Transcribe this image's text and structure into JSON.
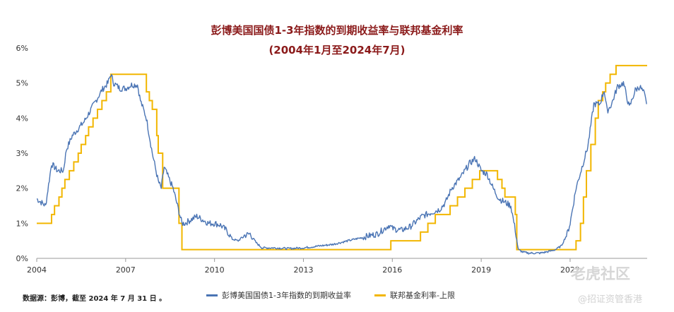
{
  "chart_data": {
    "type": "line",
    "title": "彭博美国国债1-3年指数的到期收益率与联邦基金利率",
    "subtitle": "(2004年1月至2024年7月)",
    "ylabel": "",
    "xlabel": "",
    "y_ticks": [
      "0%",
      "1%",
      "2%",
      "3%",
      "4%",
      "5%",
      "6%"
    ],
    "x_ticks": [
      "2004",
      "2007",
      "2010",
      "2013",
      "2016",
      "2019",
      "2022"
    ],
    "xlim": [
      2004.0,
      2024.6
    ],
    "ylim": [
      0,
      6
    ],
    "grid": false,
    "legend_position": "bottom",
    "colors": {
      "series1": "#4a74b4",
      "series2": "#f2b600"
    },
    "series": [
      {
        "name": "彭博美国国债1-3年指数的到期收益率",
        "x": [
          2004.0,
          2004.15,
          2004.3,
          2004.4,
          2004.5,
          2004.7,
          2004.9,
          2005.0,
          2005.2,
          2005.4,
          2005.6,
          2005.8,
          2006.0,
          2006.2,
          2006.4,
          2006.5,
          2006.6,
          2006.8,
          2007.0,
          2007.2,
          2007.4,
          2007.5,
          2007.7,
          2007.9,
          2008.0,
          2008.1,
          2008.2,
          2008.3,
          2008.45,
          2008.6,
          2008.75,
          2008.9,
          2009.0,
          2009.2,
          2009.4,
          2009.6,
          2009.8,
          2010.0,
          2010.2,
          2010.4,
          2010.6,
          2010.8,
          2011.0,
          2011.2,
          2011.4,
          2011.6,
          2011.8,
          2012.0,
          2012.5,
          2013.0,
          2013.5,
          2014.0,
          2014.5,
          2015.0,
          2015.5,
          2015.9,
          2016.0,
          2016.3,
          2016.6,
          2017.0,
          2017.3,
          2017.6,
          2017.8,
          2018.0,
          2018.3,
          2018.6,
          2018.8,
          2019.0,
          2019.2,
          2019.4,
          2019.6,
          2019.8,
          2020.0,
          2020.15,
          2020.25,
          2020.4,
          2020.6,
          2020.8,
          2021.0,
          2021.3,
          2021.5,
          2021.7,
          2021.9,
          2022.0,
          2022.2,
          2022.4,
          2022.6,
          2022.8,
          2023.0,
          2023.15,
          2023.25,
          2023.4,
          2023.6,
          2023.8,
          2024.0,
          2024.2,
          2024.35,
          2024.5,
          2024.58
        ],
        "values": [
          1.7,
          1.6,
          1.5,
          2.1,
          2.7,
          2.5,
          2.5,
          3.1,
          3.5,
          3.7,
          3.9,
          4.2,
          4.5,
          4.8,
          5.0,
          5.25,
          5.0,
          4.85,
          4.85,
          4.95,
          4.95,
          4.5,
          4.0,
          3.0,
          2.6,
          2.2,
          2.0,
          2.6,
          2.3,
          2.0,
          1.5,
          1.0,
          1.0,
          1.1,
          1.2,
          1.1,
          1.0,
          1.0,
          0.95,
          0.8,
          0.55,
          0.5,
          0.65,
          0.7,
          0.45,
          0.3,
          0.3,
          0.3,
          0.28,
          0.3,
          0.35,
          0.4,
          0.5,
          0.6,
          0.7,
          0.95,
          0.85,
          0.8,
          0.9,
          1.2,
          1.3,
          1.4,
          1.6,
          2.0,
          2.3,
          2.7,
          2.85,
          2.5,
          2.4,
          2.0,
          1.7,
          1.6,
          1.5,
          0.8,
          0.25,
          0.18,
          0.15,
          0.15,
          0.15,
          0.2,
          0.25,
          0.35,
          0.7,
          1.0,
          2.0,
          2.6,
          3.2,
          4.4,
          4.4,
          4.8,
          4.2,
          4.4,
          4.9,
          5.0,
          4.3,
          4.8,
          4.9,
          4.7,
          4.4
        ]
      },
      {
        "name": "联邦基金利率-上限",
        "x": [
          2004.0,
          2004.5,
          2004.6,
          2004.75,
          2004.85,
          2004.95,
          2005.1,
          2005.25,
          2005.4,
          2005.5,
          2005.65,
          2005.75,
          2005.9,
          2006.05,
          2006.2,
          2006.35,
          2006.5,
          2007.7,
          2007.8,
          2007.9,
          2008.05,
          2008.1,
          2008.25,
          2008.8,
          2008.9,
          2015.95,
          2016.95,
          2017.2,
          2017.45,
          2017.95,
          2018.2,
          2018.45,
          2018.7,
          2018.95,
          2019.55,
          2019.7,
          2019.8,
          2020.15,
          2020.2,
          2022.2,
          2022.35,
          2022.45,
          2022.55,
          2022.7,
          2022.85,
          2022.95,
          2023.1,
          2023.2,
          2023.35,
          2023.55,
          2024.6
        ],
        "values": [
          1.0,
          1.25,
          1.5,
          1.75,
          2.0,
          2.25,
          2.5,
          2.75,
          3.0,
          3.25,
          3.5,
          3.75,
          4.0,
          4.25,
          4.5,
          4.75,
          5.25,
          4.75,
          4.5,
          4.25,
          3.5,
          3.0,
          2.0,
          1.0,
          0.25,
          0.5,
          0.75,
          1.0,
          1.25,
          1.5,
          1.75,
          2.0,
          2.25,
          2.5,
          2.25,
          2.0,
          1.75,
          1.25,
          0.25,
          0.5,
          1.0,
          1.75,
          2.5,
          3.25,
          4.0,
          4.5,
          4.75,
          5.0,
          5.25,
          5.5,
          5.5
        ]
      }
    ],
    "source_note": "数据源：彭博，截至 2024 年 7 月 31 日 。"
  },
  "watermark": {
    "line1": "老虎社区",
    "line2": "@招证资管香港"
  }
}
